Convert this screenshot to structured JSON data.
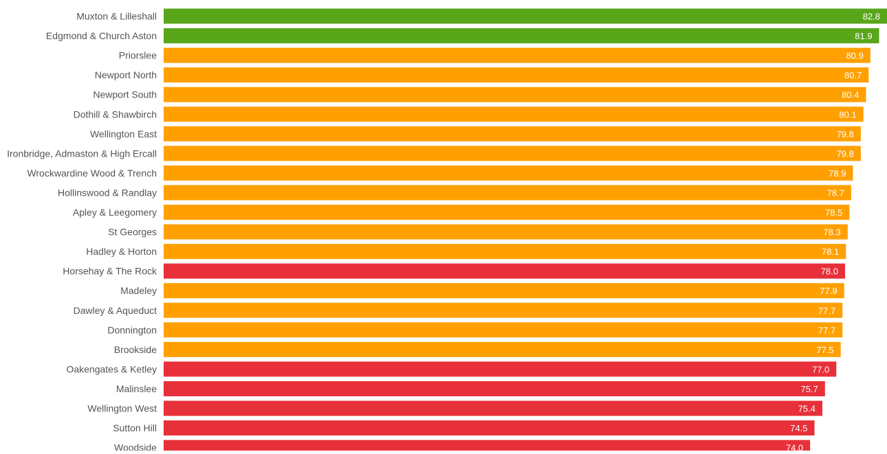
{
  "chart_data": {
    "type": "bar",
    "orientation": "horizontal",
    "categories": [
      "Muxton & Lilleshall",
      "Edgmond & Church Aston",
      "Priorslee",
      "Newport North",
      "Newport South",
      "Dothill & Shawbirch",
      "Wellington East",
      "Ironbridge, Admaston & High Ercall",
      "Wrockwardine Wood & Trench",
      "Hollinswood & Randlay",
      "Apley & Leegomery",
      "St Georges",
      "Hadley & Horton",
      "Horsehay & The Rock",
      "Madeley",
      "Dawley & Aqueduct",
      "Donnington",
      "Brookside",
      "Oakengates & Ketley",
      "Malinslee",
      "Wellington West",
      "Sutton Hill",
      "Woodside"
    ],
    "values": [
      82.8,
      81.9,
      80.9,
      80.7,
      80.4,
      80.1,
      79.8,
      79.8,
      78.9,
      78.7,
      78.5,
      78.3,
      78.1,
      78.0,
      77.9,
      77.7,
      77.7,
      77.5,
      77.0,
      75.7,
      75.4,
      74.5,
      74.0
    ],
    "value_labels": [
      "82.8",
      "81.9",
      "80.9",
      "80.7",
      "80.4",
      "80.1",
      "79.8",
      "79.8",
      "78.9",
      "78.7",
      "78.5",
      "78.3",
      "78.1",
      "78.0",
      "77.9",
      "77.7",
      "77.7",
      "77.5",
      "77.0",
      "75.7",
      "75.4",
      "74.5",
      "74.0"
    ],
    "bar_status": [
      "green",
      "green",
      "orange",
      "orange",
      "orange",
      "orange",
      "orange",
      "orange",
      "orange",
      "orange",
      "orange",
      "orange",
      "orange",
      "red",
      "orange",
      "orange",
      "orange",
      "orange",
      "red",
      "red",
      "red",
      "red",
      "red"
    ],
    "colors": {
      "green": "#5aa61b",
      "orange": "#ffa000",
      "red": "#e8303a"
    },
    "xlim": [
      0,
      82.8
    ],
    "title": "",
    "xlabel": "",
    "ylabel": "",
    "grid": false,
    "legend": "none"
  }
}
